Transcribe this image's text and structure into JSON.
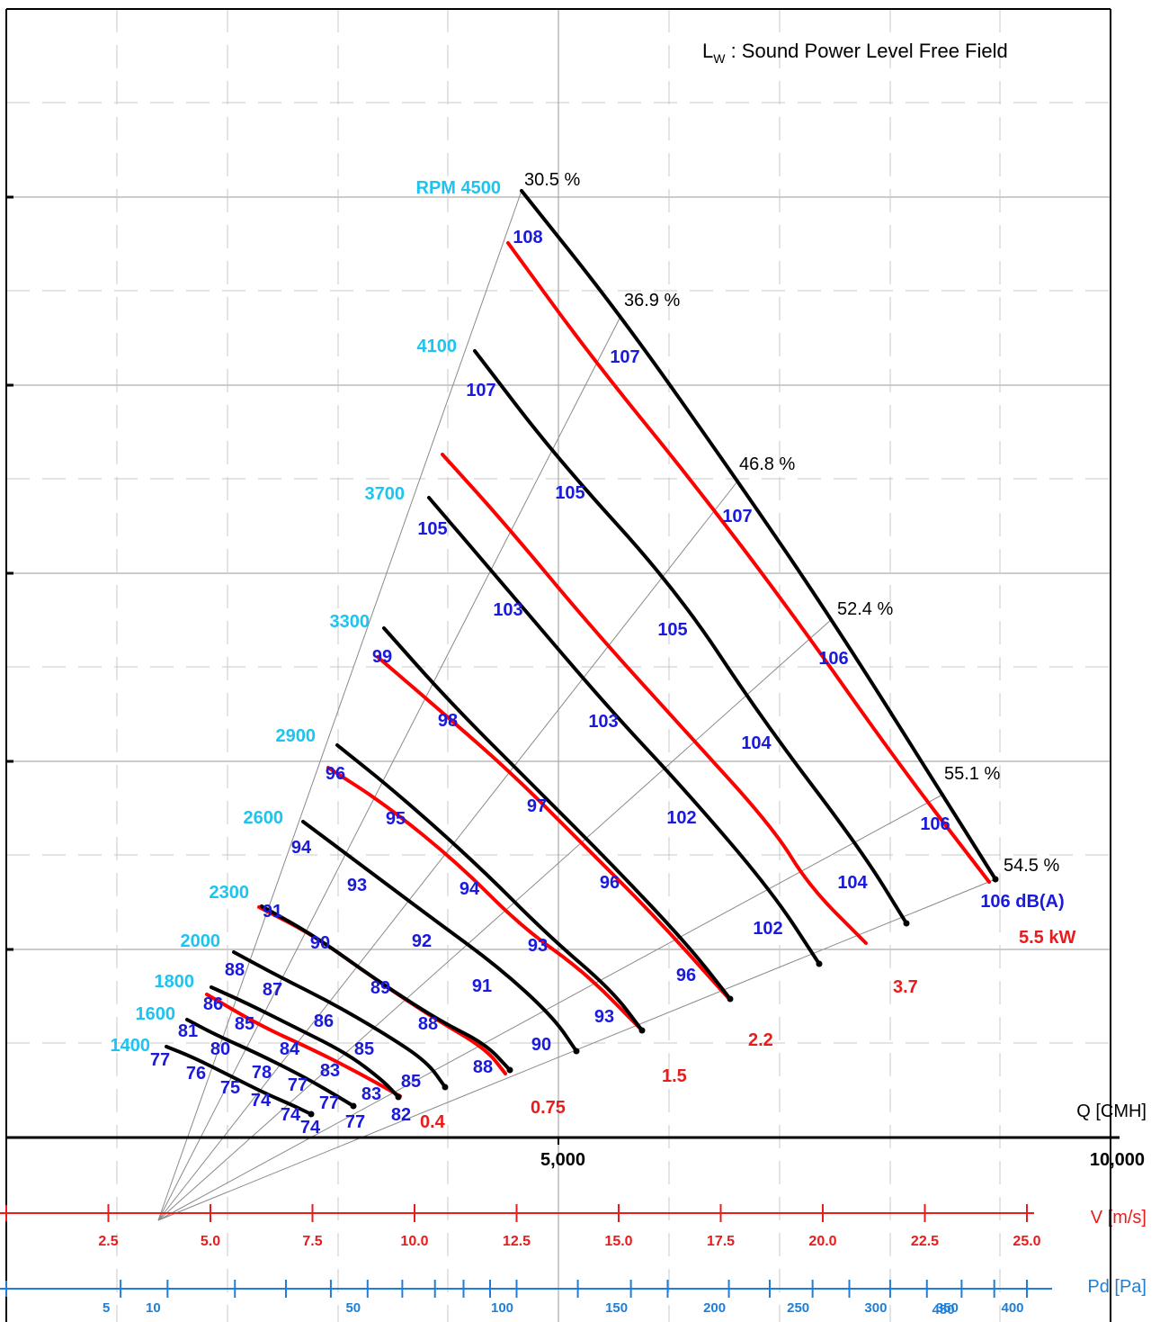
{
  "chart_data": {
    "type": "line",
    "legend_title": "L",
    "legend_title_sub": "W",
    "legend_title_rest": " : Sound Power Level Free Field",
    "x_axis": {
      "label": "Q [CMH]",
      "range": [
        0,
        10000
      ],
      "ticks": [
        {
          "value": 5000,
          "label": "5,000"
        },
        {
          "value": 10000,
          "label": "10,000"
        }
      ]
    },
    "velocity_axis": {
      "label": "V [m/s]",
      "ticks": [
        {
          "q": 500,
          "label": "2.5"
        },
        {
          "q": 1000,
          "label": "5.0"
        },
        {
          "q": 1500,
          "label": "7.5"
        },
        {
          "q": 2000,
          "label": "10.0"
        },
        {
          "q": 2500,
          "label": "12.5"
        },
        {
          "q": 3000,
          "label": "15.0"
        },
        {
          "q": 3500,
          "label": "17.5"
        },
        {
          "q": 4000,
          "label": "20.0"
        },
        {
          "q": 4500,
          "label": "22.5"
        },
        {
          "q": 5000,
          "label": "25.0"
        }
      ]
    },
    "pressure_axis": {
      "label": "Pd [Pa]",
      "ticks": [
        {
          "q": 560,
          "label": "5"
        },
        {
          "q": 790,
          "label": "10"
        },
        {
          "q": 1770,
          "label": "50"
        },
        {
          "q": 2500,
          "label": "100"
        },
        {
          "q": 3060,
          "label": "150"
        },
        {
          "q": 3540,
          "label": "200"
        },
        {
          "q": 3950,
          "label": "250"
        },
        {
          "q": 4330,
          "label": "300"
        },
        {
          "q": 4680,
          "label": "350"
        },
        {
          "q": 5000,
          "label": "400"
        }
      ],
      "extra_labels": [
        {
          "q": 4520,
          "label": "450"
        }
      ],
      "minor_q": [
        1120,
        1370,
        1590,
        1940,
        2100,
        2240,
        2370,
        2800,
        3240,
        3740,
        4130,
        4510,
        4840
      ]
    },
    "rpm_labels": [
      {
        "label": "RPM 4500"
      },
      {
        "label": "4100"
      },
      {
        "label": "3700"
      },
      {
        "label": "3300"
      },
      {
        "label": "2900"
      },
      {
        "label": "2600"
      },
      {
        "label": "2300"
      },
      {
        "label": "2000"
      },
      {
        "label": "1800"
      },
      {
        "label": "1600"
      },
      {
        "label": "1400"
      }
    ],
    "efficiency_labels": [
      "30.5 %",
      "36.9 %",
      "46.8 %",
      "52.4 %",
      "55.1 %",
      "54.5 %"
    ],
    "power_labels": [
      "5.5 kW",
      "3.7",
      "2.2",
      "1.5",
      "0.75",
      "0.4"
    ],
    "sound_end_label": "106 dB(A)",
    "rpm_curves": [
      {
        "rpm": 4500,
        "sound": [
          "108",
          "107",
          "107",
          "106",
          "106"
        ]
      },
      {
        "rpm": 4100,
        "sound": [
          "107",
          "105",
          "105",
          "104",
          "104"
        ]
      },
      {
        "rpm": 3700,
        "sound": [
          "105",
          "103",
          "103",
          "102",
          "102"
        ]
      },
      {
        "rpm": 3300,
        "sound": [
          "99",
          "98",
          "97",
          "96",
          "96"
        ]
      },
      {
        "rpm": 2900,
        "sound": [
          "96",
          "95",
          "94",
          "93",
          "93"
        ]
      },
      {
        "rpm": 2600,
        "sound": [
          "94",
          "93",
          "92",
          "91",
          "90"
        ]
      },
      {
        "rpm": 2300,
        "sound": [
          "91",
          "90",
          "89",
          "88",
          "88"
        ]
      },
      {
        "rpm": 2000,
        "sound": [
          "88",
          "87",
          "86",
          "85",
          "85"
        ]
      },
      {
        "rpm": 1800,
        "sound": [
          "86",
          "85",
          "84",
          "83",
          "82"
        ]
      },
      {
        "rpm": 1600,
        "sound": [
          "81",
          "80",
          "78",
          "77",
          "77"
        ]
      },
      {
        "rpm": 1400,
        "sound": [
          "77",
          "76",
          "75",
          "74",
          "74"
        ]
      }
    ],
    "extra_sound_labels": [
      "83",
      "77",
      "74"
    ],
    "power_curves": [
      {
        "power": "5.5"
      },
      {
        "power": "3.7"
      },
      {
        "power": "2.2"
      },
      {
        "power": "1.5"
      },
      {
        "power": "0.75"
      },
      {
        "power": "0.4"
      }
    ],
    "colors": {
      "rpm_curve": "#000000",
      "power_curve": "#ff0000",
      "sound_label": "#1a1adc",
      "rpm_label": "#1ec4f0",
      "power_label": "#e81c1c",
      "velocity_axis": "#e81c1c",
      "pressure_axis": "#1f7fd6",
      "efficiency_ray": "#8a8a8a"
    },
    "grid": true
  }
}
